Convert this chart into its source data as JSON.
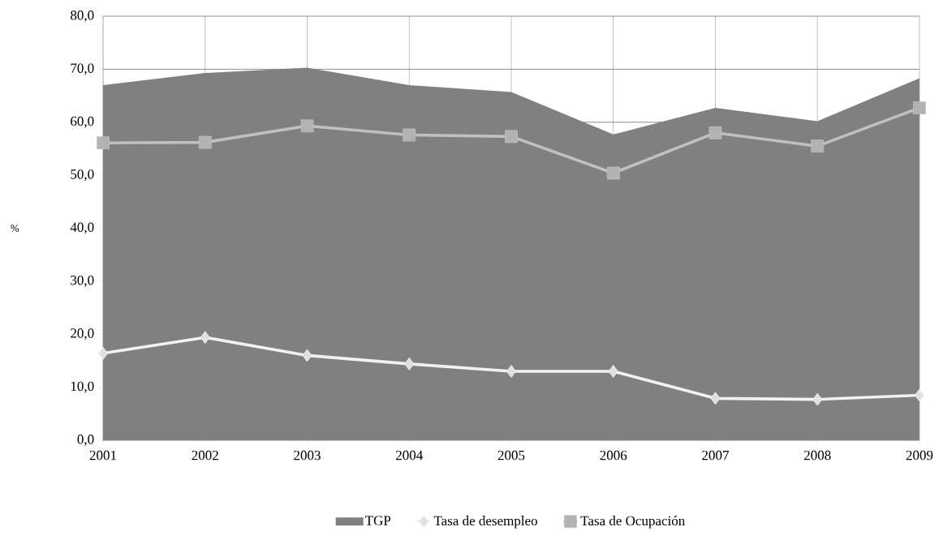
{
  "chart_data": {
    "type": "line",
    "ylabel": "%",
    "categories": [
      "2001",
      "2002",
      "2003",
      "2004",
      "2005",
      "2006",
      "2007",
      "2008",
      "2009"
    ],
    "series": [
      {
        "name": "TGP",
        "type": "area",
        "color": "#808080",
        "values": [
          67.0,
          69.3,
          70.3,
          67.0,
          65.7,
          57.7,
          62.7,
          60.2,
          68.3
        ]
      },
      {
        "name": "Tasa de desempleo",
        "color": "#f2f2f2",
        "marker": "diamond",
        "values": [
          16.4,
          19.4,
          16.0,
          14.4,
          13.0,
          13.0,
          7.9,
          7.7,
          8.5
        ]
      },
      {
        "name": "Tasa de Ocupación",
        "color": "#c0c0c0",
        "marker": "square",
        "values": [
          56.1,
          56.2,
          59.3,
          57.6,
          57.3,
          50.4,
          58.0,
          55.5,
          62.7
        ]
      }
    ],
    "ylim": [
      0,
      80
    ],
    "yticks": [
      {
        "value": 0,
        "label": "0,0"
      },
      {
        "value": 10,
        "label": "10,0"
      },
      {
        "value": 20,
        "label": "20,0"
      },
      {
        "value": 30,
        "label": "30,0"
      },
      {
        "value": 40,
        "label": "40,0"
      },
      {
        "value": 50,
        "label": "50,0"
      },
      {
        "value": 60,
        "label": "60,0"
      },
      {
        "value": 70,
        "label": "70,0"
      },
      {
        "value": 80,
        "label": "80,0"
      }
    ],
    "grid": true,
    "legend": "bottom"
  }
}
